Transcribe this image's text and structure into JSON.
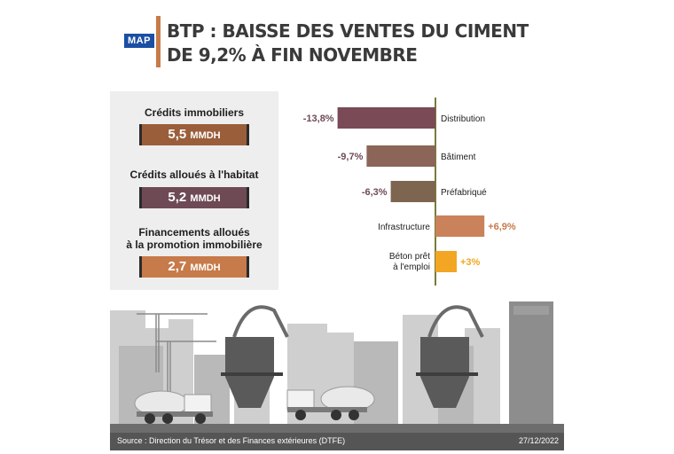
{
  "header": {
    "logo_text": "MAP",
    "title_line1": "BTP : BAISSE DES VENTES DU CIMENT",
    "title_line2": "DE 9,2% À FIN NOVEMBRE"
  },
  "credits": [
    {
      "label": "Crédits immobiliers",
      "value": "5,5",
      "unit": "MMDH",
      "color": "#9a5e3a"
    },
    {
      "label": "Crédits alloués à l'habitat",
      "value": "5,2",
      "unit": "MMDH",
      "color": "#6e4a55"
    },
    {
      "label_line1": "Financements alloués",
      "label_line2": "à la promotion immobilière",
      "value": "2,7",
      "unit": "MMDH",
      "color": "#c77a4a"
    }
  ],
  "chart_data": {
    "type": "bar",
    "orientation": "horizontal",
    "categories": [
      "Distribution",
      "Bâtiment",
      "Préfabriqué",
      "Infrastructure",
      "Béton prêt à l'emploi"
    ],
    "values": [
      -13.8,
      -9.7,
      -6.3,
      6.9,
      3
    ],
    "value_labels": [
      "-13,8%",
      "-9,7%",
      "-6,3%",
      "+6,9%",
      "+3%"
    ],
    "colors": [
      "#7a4a57",
      "#8a6558",
      "#7d6550",
      "#c9825a",
      "#f2a623"
    ],
    "label_colors": [
      "#6e4a55",
      "#6e4a55",
      "#6e4a55",
      "#c77a4a",
      "#f2a623"
    ],
    "axis_color": "#7a7a3a"
  },
  "footer": {
    "source": "Source : Direction du Trésor et des Finances extérieures (DTFE)",
    "date": "27/12/2022"
  }
}
